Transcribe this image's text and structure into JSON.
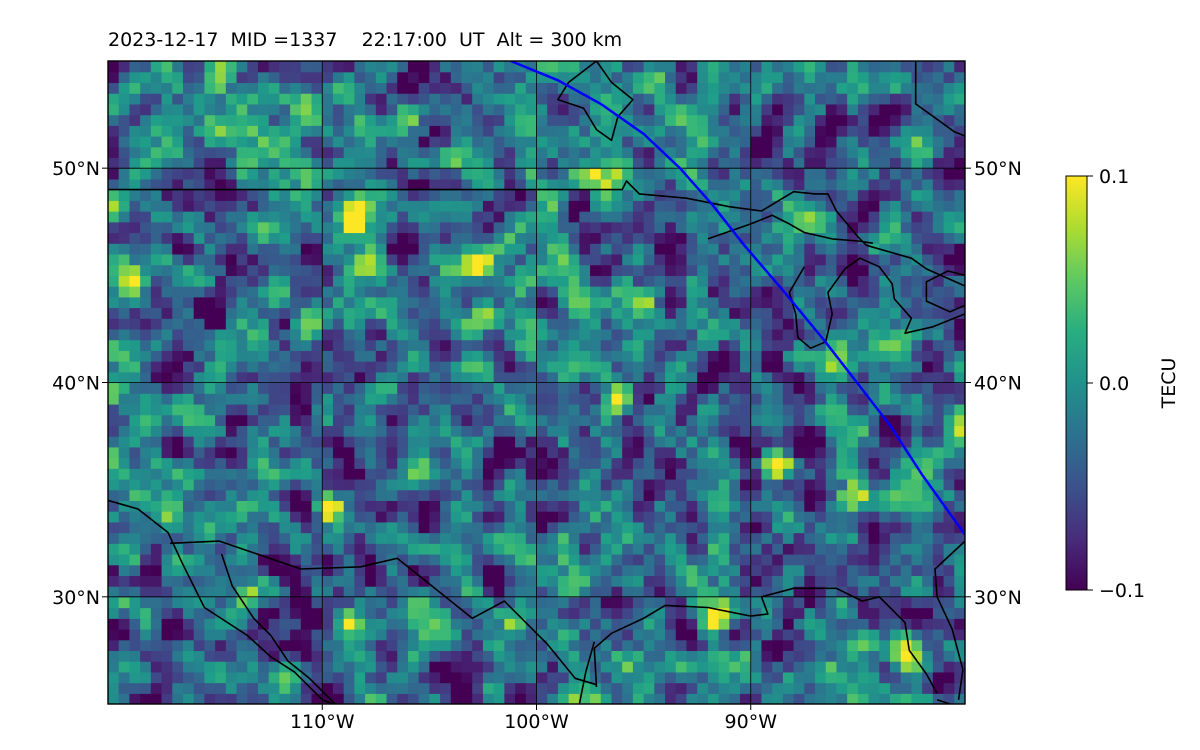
{
  "title": "2023-12-17  MID =1337    22:17:00  UT  Alt = 300 km",
  "chart_data": {
    "type": "heatmap",
    "title": "2023-12-17  MID =1337    22:17:00  UT  Alt = 300 km",
    "date": "2023-12-17",
    "mid": 1337,
    "time_ut": "22:17:00",
    "altitude": "300 km",
    "lon_range": [
      -120,
      -80
    ],
    "lat_range": [
      25,
      55
    ],
    "x_ticks": [
      {
        "value": -110,
        "label": "110°W"
      },
      {
        "value": -100,
        "label": "100°W"
      },
      {
        "value": -90,
        "label": "90°W"
      }
    ],
    "y_ticks": [
      {
        "value": 30,
        "label": "30°N"
      },
      {
        "value": 40,
        "label": "40°N"
      },
      {
        "value": 50,
        "label": "50°N"
      }
    ],
    "grid": true,
    "colorbar": {
      "label": "TECU",
      "min": -0.1,
      "max": 0.1,
      "colormap": "viridis",
      "ticks": [
        {
          "value": 0.1,
          "label": "0.1"
        },
        {
          "value": 0.0,
          "label": "0.0"
        },
        {
          "value": -0.1,
          "label": "−0.1"
        }
      ]
    },
    "track": {
      "color": "#0000ff",
      "points": [
        [
          -101.2,
          55
        ],
        [
          -99,
          54.1
        ],
        [
          -97,
          53
        ],
        [
          -95,
          51.6
        ],
        [
          -93.3,
          50
        ],
        [
          -91.8,
          48.3
        ],
        [
          -90.3,
          46.4
        ],
        [
          -88.5,
          44.3
        ],
        [
          -86.6,
          42
        ],
        [
          -85.2,
          40.2
        ],
        [
          -83.5,
          38
        ],
        [
          -82,
          35.7
        ],
        [
          -80,
          32.9
        ]
      ]
    },
    "hotspots_positive": [
      [
        -109.7,
        34.1
      ],
      [
        -108.8,
        28.6
      ],
      [
        -110.9,
        42
      ],
      [
        -102.8,
        45.6
      ],
      [
        -95.8,
        27
      ],
      [
        -90.2,
        27.2
      ],
      [
        -86.5,
        26.5
      ],
      [
        -83,
        27.2
      ],
      [
        -88.7,
        36.2
      ],
      [
        -108.5,
        47.5
      ],
      [
        -113.5,
        30
      ],
      [
        -96.2,
        39
      ],
      [
        -115.5,
        33
      ],
      [
        -101,
        29
      ],
      [
        -91.7,
        28.8
      ],
      [
        -118.8,
        45
      ],
      [
        -85,
        34.6
      ],
      [
        -97.2,
        49.7
      ],
      [
        -113.8,
        51.9
      ]
    ],
    "hotspots_negative": [
      [
        -90.2,
        28
      ],
      [
        -98,
        48.5
      ],
      [
        -111,
        39
      ],
      [
        -117,
        28.5
      ],
      [
        -88.5,
        28.5
      ],
      [
        -93.5,
        46.8
      ],
      [
        -115,
        43
      ],
      [
        -84,
        38.2
      ],
      [
        -101.5,
        36.5
      ],
      [
        -81.5,
        44.5
      ],
      [
        -91,
        54.5
      ],
      [
        -105,
        51
      ]
    ]
  }
}
